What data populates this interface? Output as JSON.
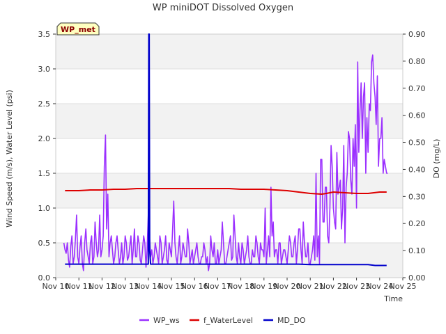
{
  "chart_data": {
    "type": "line",
    "title": "WP miniDOT Dissolved Oxygen",
    "xlabel": "Time",
    "ylabel_left": "Wind Speed (m/s), Water Level (psi)",
    "ylabel_right": "DO (mg/L)",
    "xlim": [
      10,
      25
    ],
    "ylim_left": [
      0,
      3.5
    ],
    "ylim_right": [
      0,
      0.9
    ],
    "x_ticks": [
      10,
      11,
      12,
      13,
      14,
      15,
      16,
      17,
      18,
      19,
      20,
      21,
      22,
      23,
      24,
      25
    ],
    "x_tick_labels": [
      "Nov 10",
      "Nov 11",
      "Nov 12",
      "Nov 13",
      "Nov 14",
      "Nov 15",
      "Nov 16",
      "Nov 17",
      "Nov 18",
      "Nov 19",
      "Nov 20",
      "Nov 21",
      "Nov 22",
      "Nov 23",
      "Nov 24",
      "Nov 25"
    ],
    "y_left_ticks": [
      0.0,
      0.5,
      1.0,
      1.5,
      2.0,
      2.5,
      3.0,
      3.5
    ],
    "y_left_tick_labels": [
      "0.0",
      "0.5",
      "1.0",
      "1.5",
      "2.0",
      "2.5",
      "3.0",
      "3.5"
    ],
    "y_right_ticks": [
      0.0,
      0.1,
      0.2,
      0.3,
      0.4,
      0.5,
      0.6,
      0.7,
      0.8,
      0.9
    ],
    "y_right_tick_labels": [
      "0.00",
      "0.10",
      "0.20",
      "0.30",
      "0.40",
      "0.50",
      "0.60",
      "0.70",
      "0.80",
      "0.90"
    ],
    "site_label": "WP_met",
    "grid": true,
    "legend_position": "bottom",
    "series": [
      {
        "name": "WP_ws",
        "color": "#9b30ff",
        "axis": "left",
        "x": [
          10.4,
          10.5,
          10.6,
          10.7,
          10.8,
          10.9,
          11.0,
          11.1,
          11.2,
          11.3,
          11.4,
          11.5,
          11.6,
          11.7,
          11.8,
          11.9,
          12.0,
          12.1,
          12.15,
          12.2,
          12.3,
          12.4,
          12.5,
          12.6,
          12.7,
          12.8,
          12.9,
          13.0,
          13.1,
          13.2,
          13.3,
          13.4,
          13.5,
          13.6,
          13.7,
          13.8,
          13.9,
          14.0,
          14.1,
          14.2,
          14.3,
          14.4,
          14.5,
          14.6,
          14.7,
          14.8,
          14.9,
          15.0,
          15.1,
          15.2,
          15.3,
          15.4,
          15.5,
          15.6,
          15.7,
          15.8,
          15.9,
          16.0,
          16.1,
          16.2,
          16.3,
          16.4,
          16.5,
          16.6,
          16.7,
          16.8,
          16.9,
          17.0,
          17.1,
          17.2,
          17.3,
          17.4,
          17.5,
          17.6,
          17.7,
          17.8,
          17.9,
          18.0,
          18.1,
          18.2,
          18.3,
          18.4,
          18.5,
          18.6,
          18.7,
          18.8,
          18.9,
          19.0,
          19.1,
          19.2,
          19.3,
          19.4,
          19.5,
          19.6,
          19.7,
          19.8,
          19.9,
          20.0,
          20.1,
          20.2,
          20.3,
          20.4,
          20.5,
          20.6,
          20.7,
          20.8,
          20.9,
          21.0,
          21.1,
          21.2,
          21.3,
          21.4,
          21.5,
          21.6,
          21.7,
          21.8,
          21.9,
          22.0,
          22.1,
          22.2,
          22.3,
          22.4,
          22.5,
          22.6,
          22.7,
          22.8,
          22.9,
          23.0,
          23.1,
          23.2,
          23.3,
          23.4,
          23.5,
          23.6,
          23.7,
          23.8,
          23.9,
          24.0,
          24.1,
          24.2,
          24.3
        ],
        "y": [
          0.4,
          0.5,
          0.15,
          0.6,
          0.3,
          0.9,
          0.2,
          0.6,
          0.1,
          0.7,
          0.3,
          0.5,
          0.2,
          0.8,
          0.3,
          0.9,
          0.4,
          1.6,
          2.05,
          0.7,
          0.3,
          0.6,
          0.2,
          0.5,
          0.4,
          0.3,
          0.2,
          0.6,
          0.25,
          0.45,
          0.2,
          0.7,
          0.3,
          0.5,
          0.2,
          0.6,
          0.15,
          0.9,
          0.3,
          0.2,
          0.5,
          0.3,
          0.6,
          0.2,
          0.4,
          0.25,
          0.5,
          0.3,
          1.1,
          0.3,
          0.4,
          0.2,
          0.5,
          0.3,
          0.7,
          0.2,
          0.4,
          0.3,
          0.5,
          0.2,
          0.3,
          0.5,
          0.2,
          0.1,
          0.6,
          0.3,
          0.2,
          0.4,
          0.3,
          0.8,
          0.2,
          0.3,
          0.5,
          0.25,
          0.9,
          0.3,
          0.5,
          0.2,
          0.4,
          0.3,
          0.6,
          0.2,
          0.4,
          0.3,
          0.5,
          0.2,
          0.4,
          0.3,
          0.2,
          0.6,
          1.3,
          0.8,
          0.4,
          0.2,
          0.5,
          0.3,
          0.4,
          0.2,
          0.6,
          0.3,
          0.5,
          0.2,
          0.7,
          0.4,
          0.8,
          0.3,
          0.5,
          0.2,
          0.4,
          0.25,
          0.3,
          0.2,
          1.7,
          0.8,
          1.3,
          0.5,
          1.9,
          1.0,
          0.7,
          1.2,
          1.4,
          1.0,
          0.5,
          1.5,
          2.0,
          1.2,
          1.6,
          1.0,
          1.8,
          2.8,
          2.6,
          1.5,
          1.8,
          2.4,
          3.2,
          2.6,
          2.9,
          2.0,
          2.3,
          1.7,
          1.5
        ],
        "extras": [
          [
            10.35,
            0.5
          ],
          [
            10.45,
            0.35
          ],
          [
            10.55,
            0.25
          ],
          [
            10.65,
            0.45
          ],
          [
            10.75,
            0.2
          ],
          [
            10.85,
            0.55
          ],
          [
            10.95,
            0.3
          ],
          [
            11.05,
            0.45
          ],
          [
            11.15,
            0.2
          ],
          [
            11.25,
            0.5
          ],
          [
            11.35,
            0.4
          ],
          [
            11.45,
            0.2
          ],
          [
            11.55,
            0.6
          ],
          [
            11.65,
            0.3
          ],
          [
            11.75,
            0.5
          ],
          [
            11.85,
            0.4
          ],
          [
            11.95,
            0.3
          ],
          [
            12.05,
            0.6
          ],
          [
            12.25,
            1.2
          ],
          [
            12.35,
            0.5
          ],
          [
            12.45,
            0.4
          ],
          [
            12.55,
            0.3
          ],
          [
            12.65,
            0.6
          ],
          [
            12.75,
            0.2
          ],
          [
            12.85,
            0.5
          ],
          [
            12.95,
            0.3
          ],
          [
            13.05,
            0.5
          ],
          [
            13.15,
            0.3
          ],
          [
            13.25,
            0.6
          ],
          [
            13.35,
            0.4
          ],
          [
            13.45,
            0.3
          ],
          [
            13.55,
            0.6
          ],
          [
            13.65,
            0.25
          ],
          [
            13.75,
            0.4
          ],
          [
            13.85,
            0.5
          ],
          [
            13.95,
            0.4
          ],
          [
            14.05,
            0.6
          ],
          [
            14.15,
            0.4
          ],
          [
            14.25,
            0.3
          ],
          [
            14.35,
            0.4
          ],
          [
            14.45,
            0.2
          ],
          [
            14.55,
            0.5
          ],
          [
            14.65,
            0.3
          ],
          [
            14.75,
            0.6
          ],
          [
            14.85,
            0.2
          ],
          [
            14.95,
            0.4
          ],
          [
            15.05,
            0.7
          ],
          [
            15.15,
            0.5
          ],
          [
            15.25,
            0.2
          ],
          [
            15.35,
            0.6
          ],
          [
            15.45,
            0.3
          ],
          [
            15.55,
            0.4
          ],
          [
            15.65,
            0.3
          ],
          [
            15.75,
            0.5
          ],
          [
            15.85,
            0.3
          ],
          [
            15.95,
            0.2
          ],
          [
            16.05,
            0.4
          ],
          [
            16.15,
            0.3
          ],
          [
            16.25,
            0.2
          ],
          [
            16.35,
            0.3
          ],
          [
            16.45,
            0.4
          ],
          [
            16.55,
            0.3
          ],
          [
            16.65,
            0.2
          ],
          [
            16.75,
            0.4
          ],
          [
            16.85,
            0.5
          ],
          [
            16.95,
            0.2
          ],
          [
            17.05,
            0.2
          ],
          [
            17.15,
            0.4
          ],
          [
            17.25,
            0.5
          ],
          [
            17.35,
            0.2
          ],
          [
            17.45,
            0.4
          ],
          [
            17.55,
            0.6
          ],
          [
            17.65,
            0.3
          ],
          [
            17.75,
            0.6
          ],
          [
            17.85,
            0.2
          ],
          [
            17.95,
            0.3
          ],
          [
            18.05,
            0.5
          ],
          [
            18.15,
            0.2
          ],
          [
            18.25,
            0.4
          ],
          [
            18.35,
            0.3
          ],
          [
            18.45,
            0.2
          ],
          [
            18.55,
            0.3
          ],
          [
            18.65,
            0.6
          ],
          [
            18.75,
            0.3
          ],
          [
            18.85,
            0.5
          ],
          [
            18.95,
            0.4
          ],
          [
            19.05,
            1.0
          ],
          [
            19.15,
            0.4
          ],
          [
            19.25,
            0.3
          ],
          [
            19.35,
            0.6
          ],
          [
            19.45,
            0.3
          ],
          [
            19.55,
            0.4
          ],
          [
            19.65,
            0.5
          ],
          [
            19.75,
            0.2
          ],
          [
            19.85,
            0.4
          ],
          [
            19.95,
            0.3
          ],
          [
            20.05,
            0.4
          ],
          [
            20.15,
            0.5
          ],
          [
            20.25,
            0.3
          ],
          [
            20.35,
            0.6
          ],
          [
            20.45,
            0.4
          ],
          [
            20.55,
            0.7
          ],
          [
            20.65,
            0.2
          ],
          [
            20.75,
            0.5
          ],
          [
            20.85,
            0.3
          ],
          [
            20.95,
            0.2
          ],
          [
            21.05,
            0.3
          ],
          [
            21.15,
            0.6
          ],
          [
            21.25,
            1.5
          ],
          [
            21.35,
            0.6
          ],
          [
            21.45,
            1.7
          ],
          [
            21.55,
            0.8
          ],
          [
            21.65,
            1.3
          ],
          [
            21.75,
            0.6
          ],
          [
            21.85,
            1.0
          ],
          [
            21.95,
            1.6
          ],
          [
            22.05,
            0.8
          ],
          [
            22.15,
            1.8
          ],
          [
            22.25,
            1.3
          ],
          [
            22.35,
            0.7
          ],
          [
            22.45,
            1.9
          ],
          [
            22.55,
            1.3
          ],
          [
            22.65,
            2.1
          ],
          [
            22.75,
            1.4
          ],
          [
            22.85,
            2.0
          ],
          [
            22.95,
            2.2
          ],
          [
            23.05,
            3.1
          ],
          [
            23.15,
            2.4
          ],
          [
            23.25,
            2.0
          ],
          [
            23.35,
            2.8
          ],
          [
            23.45,
            2.3
          ],
          [
            23.55,
            2.5
          ],
          [
            23.65,
            3.1
          ],
          [
            23.75,
            2.8
          ],
          [
            23.85,
            2.2
          ],
          [
            23.95,
            1.6
          ],
          [
            24.05,
            2.0
          ],
          [
            24.15,
            1.5
          ],
          [
            24.25,
            1.6
          ],
          [
            24.35,
            1.5
          ]
        ]
      },
      {
        "name": "f_WaterLevel",
        "color": "#dd0000",
        "axis": "left",
        "x": [
          10.4,
          11.0,
          11.5,
          12.0,
          12.5,
          13.0,
          13.5,
          14.0,
          15.0,
          16.0,
          17.0,
          17.5,
          18.0,
          19.0,
          19.5,
          20.0,
          20.5,
          21.0,
          21.5,
          21.7,
          22.0,
          22.5,
          23.0,
          23.5,
          24.0,
          24.3
        ],
        "y": [
          1.25,
          1.25,
          1.26,
          1.26,
          1.27,
          1.27,
          1.28,
          1.28,
          1.28,
          1.28,
          1.28,
          1.28,
          1.27,
          1.27,
          1.26,
          1.25,
          1.23,
          1.21,
          1.2,
          1.21,
          1.23,
          1.22,
          1.21,
          1.21,
          1.23,
          1.23
        ]
      },
      {
        "name": "MD_DO",
        "color": "#0000cc",
        "axis": "right",
        "x": [
          10.4,
          11.0,
          11.5,
          12.0,
          12.5,
          13.0,
          13.5,
          13.9,
          14.0,
          14.02,
          14.04,
          14.06,
          14.1,
          14.5,
          15.0,
          16.0,
          17.0,
          18.0,
          19.0,
          20.0,
          20.5,
          21.0,
          21.5,
          22.0,
          22.5,
          23.0,
          23.5,
          23.8,
          24.0,
          24.3
        ],
        "y": [
          0.05,
          0.05,
          0.05,
          0.05,
          0.05,
          0.05,
          0.05,
          0.05,
          0.05,
          0.9,
          0.9,
          0.1,
          0.05,
          0.05,
          0.05,
          0.05,
          0.05,
          0.05,
          0.05,
          0.05,
          0.05,
          0.048,
          0.048,
          0.048,
          0.048,
          0.048,
          0.048,
          0.045,
          0.045,
          0.045
        ]
      }
    ]
  }
}
